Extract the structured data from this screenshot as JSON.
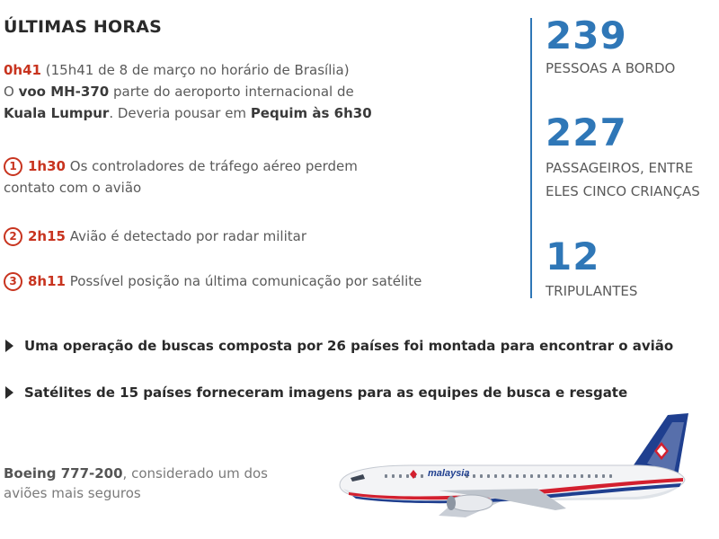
{
  "heading": "ÚLTIMAS HORAS",
  "timeline": {
    "departure": {
      "time": "0h41",
      "note": "(15h41 de 8 de março no horário de Brasília)",
      "line2_pre": "O ",
      "flight": "voo MH-370",
      "line2_post": " parte do aeroporto internacional de",
      "airport": "Kuala Lumpur",
      "line3_mid": ". Deveria pousar em ",
      "destination": "Pequim às 6h30"
    },
    "events": [
      {
        "num": "1",
        "time": "1h30",
        "text": "Os controladores de tráfego aéreo perdem",
        "text2": "contato com o avião"
      },
      {
        "num": "2",
        "time": "2h15",
        "text": "Avião é detectado por radar militar"
      },
      {
        "num": "3",
        "time": "8h11",
        "text": "Possível posição na última comunicação por satélite"
      }
    ]
  },
  "stats": [
    {
      "value": "239",
      "label_lines": [
        "PESSOAS A BORDO"
      ]
    },
    {
      "value": "227",
      "label_lines": [
        "PASSAGEIROS, ENTRE",
        "ELES CINCO CRIANÇAS"
      ]
    },
    {
      "value": "12",
      "label_lines": [
        "TRIPULANTES"
      ]
    }
  ],
  "bullets": [
    "Uma operação de buscas composta por 26 países foi montada para encontrar o avião",
    "Satélites de 15 países forneceram imagens para as equipes de busca e resgate"
  ],
  "plane": {
    "model": "Boeing 777-200",
    "caption_rest": ", considerado um dos",
    "caption_line2": "aviões mais seguros",
    "livery_text": "malaysia"
  },
  "colors": {
    "accent_red": "#c8341f",
    "accent_blue": "#2f77b7"
  }
}
